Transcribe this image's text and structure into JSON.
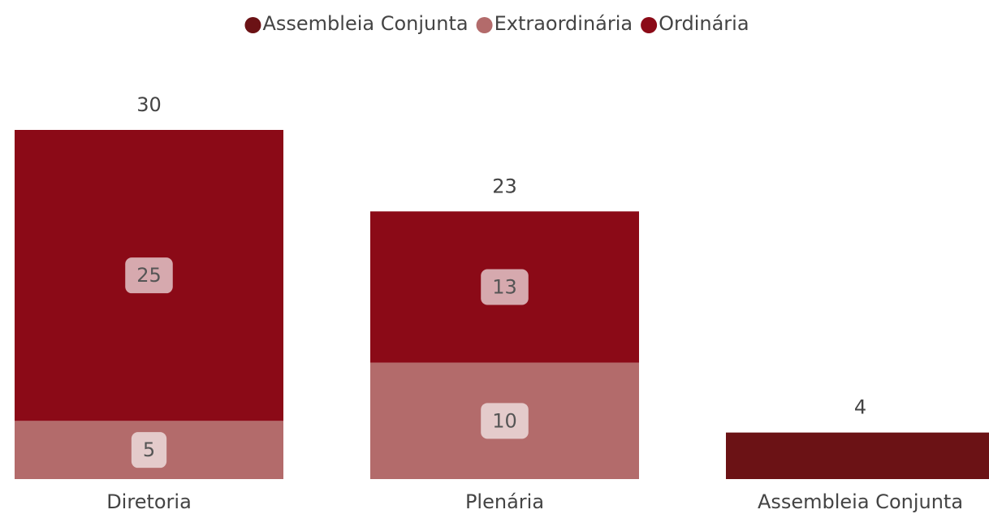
{
  "chart_data": {
    "type": "stacked-bar",
    "categories": [
      "Diretoria",
      "Plenária",
      "Assembleia Conjunta"
    ],
    "series": [
      {
        "name": "Assembleia Conjunta",
        "color": "#6b1215",
        "values": [
          null,
          null,
          4
        ]
      },
      {
        "name": "Extraordinária",
        "color": "#b36b6b",
        "values": [
          5,
          10,
          null
        ]
      },
      {
        "name": "Ordinária",
        "color": "#8b0a17",
        "values": [
          25,
          13,
          null
        ]
      }
    ],
    "totals": [
      30,
      23,
      4
    ],
    "legend": "top"
  }
}
